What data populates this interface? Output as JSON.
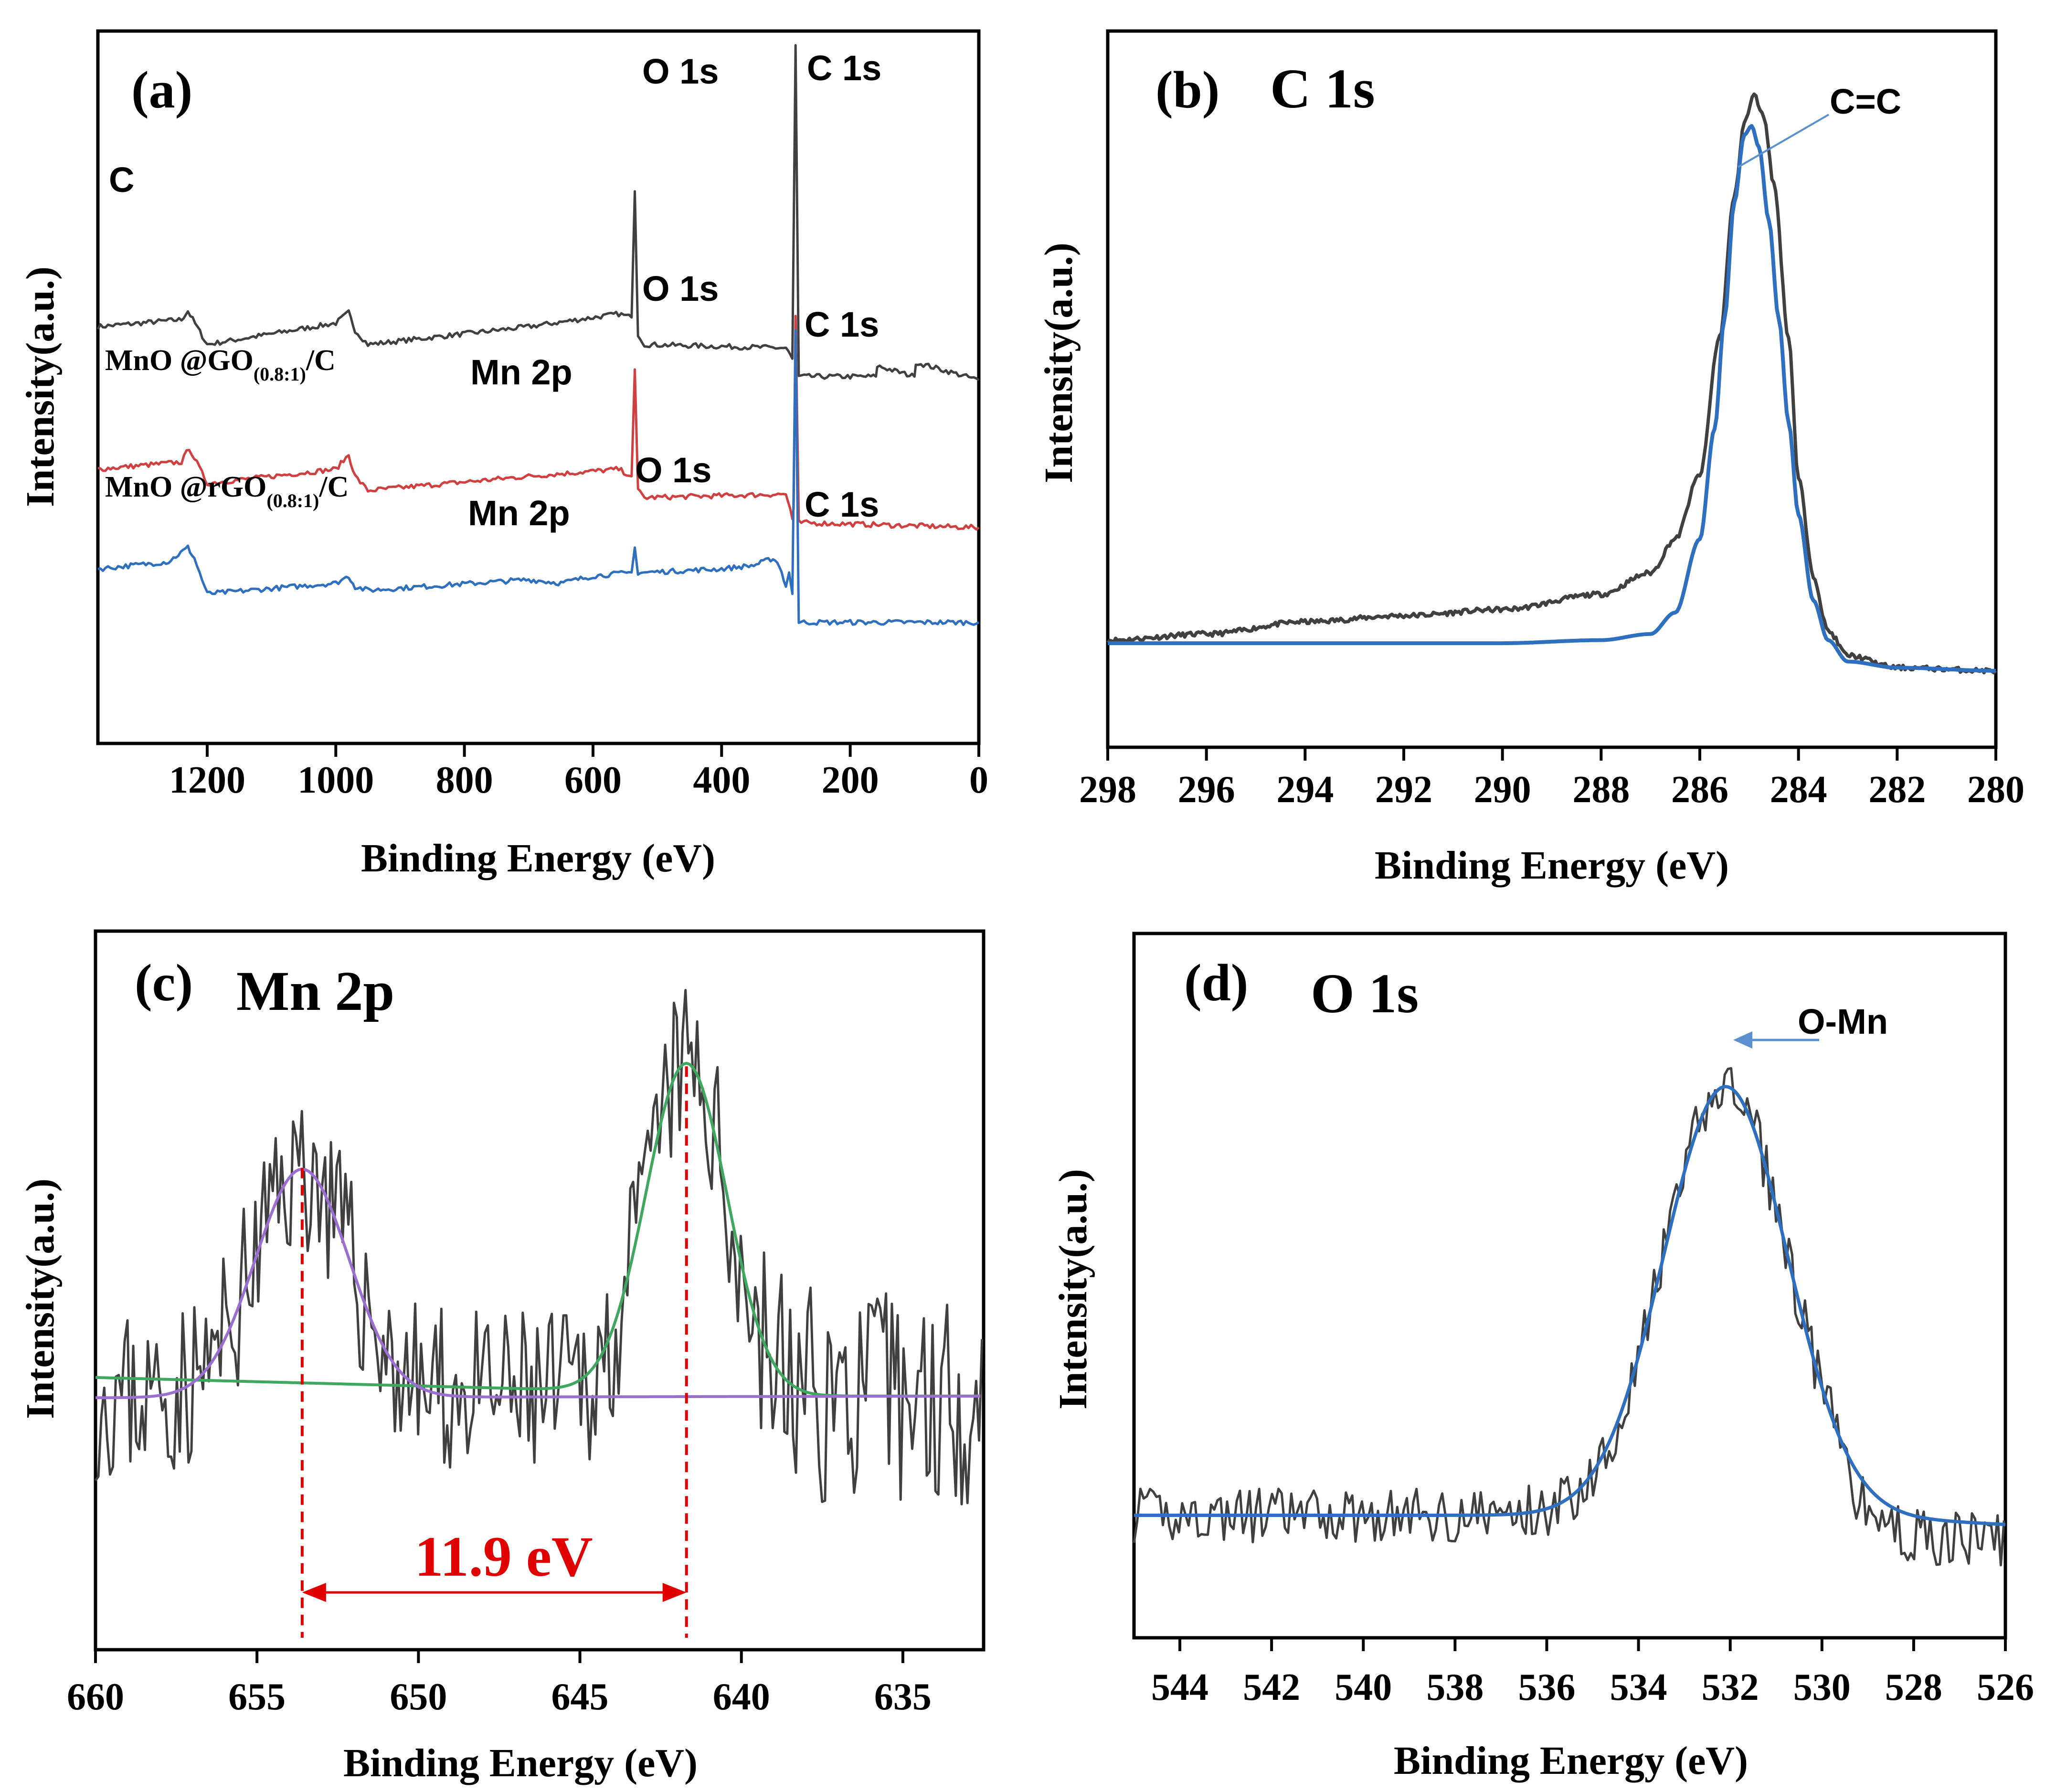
{
  "chart_data": [
    {
      "id": "a",
      "type": "line",
      "panel_label": "(a)",
      "xlabel": "Binding Energy (eV)",
      "ylabel": "Intensity(a.u.)",
      "xlim": [
        1370,
        0
      ],
      "xticks": [
        1200,
        1000,
        800,
        600,
        400,
        200,
        0
      ],
      "series": [
        {
          "name": "C",
          "color": "#404040",
          "x": [
            1370,
            1240,
            1230,
            1200,
            1000,
            980,
            970,
            950,
            700,
            560,
            540,
            535,
            530,
            520,
            300,
            290,
            285,
            280,
            160,
            158,
            100,
            98,
            0
          ],
          "y": [
            58.5,
            59.5,
            60.7,
            56.0,
            59.0,
            60.5,
            58.0,
            56.0,
            58.5,
            60.3,
            59.8,
            77.5,
            57.5,
            56.0,
            55.5,
            54.0,
            98.0,
            51.5,
            51.5,
            53.0,
            51.5,
            53.5,
            51.0
          ]
        },
        {
          "name": "MnO @GO(0.8:1)/C",
          "name_main": "MnO @GO",
          "name_sub": "(0.8:1)",
          "name_tail": "/C",
          "color": "#d04040",
          "x": [
            1370,
            1240,
            1228,
            1200,
            1000,
            980,
            970,
            950,
            700,
            560,
            540,
            535,
            530,
            520,
            300,
            290,
            288,
            285,
            280,
            0
          ],
          "y": [
            38.5,
            39.5,
            41.5,
            36.5,
            38.5,
            40.5,
            37.5,
            35.5,
            37.5,
            38.5,
            37.5,
            52.5,
            35.5,
            34.5,
            35.0,
            31.5,
            33.0,
            60.0,
            31.0,
            30.3
          ]
        },
        {
          "name": "MnO @rGO(0.8:1)/C",
          "name_main": "MnO @rGO",
          "name_sub": "(0.8:1)",
          "name_tail": "/C",
          "color": "#2e6fc0",
          "x": [
            1370,
            1260,
            1230,
            1220,
            1200,
            1000,
            980,
            970,
            950,
            700,
            650,
            600,
            540,
            535,
            530,
            520,
            400,
            350,
            320,
            310,
            300,
            295,
            290,
            285,
            280,
            0
          ],
          "y": [
            24.5,
            25.5,
            27.5,
            26.0,
            21.0,
            22.5,
            23.5,
            22.0,
            21.5,
            23.0,
            22.5,
            23.5,
            24.0,
            27.5,
            24.0,
            24.0,
            24.5,
            25.0,
            26.0,
            25.0,
            22.0,
            24.0,
            21.0,
            58.0,
            17.0,
            17.0
          ]
        }
      ],
      "annotations": [
        {
          "text": "O 1s",
          "series": "C"
        },
        {
          "text": "C 1s",
          "series": "C"
        },
        {
          "text": "O 1s",
          "series": "MnO @GO(0.8:1)/C"
        },
        {
          "text": "C 1s",
          "series": "MnO @GO(0.8:1)/C"
        },
        {
          "text": "Mn 2p",
          "series": "MnO @GO(0.8:1)/C"
        },
        {
          "text": "O 1s",
          "series": "MnO @rGO(0.8:1)/C"
        },
        {
          "text": "C 1s",
          "series": "MnO @rGO(0.8:1)/C"
        },
        {
          "text": "Mn 2p",
          "series": "MnO @rGO(0.8:1)/C"
        }
      ]
    },
    {
      "id": "b",
      "type": "line",
      "panel_label": "(b)",
      "title": "C 1s",
      "xlabel": "Binding Energy (eV)",
      "ylabel": "Intensity(a.u.)",
      "xlim": [
        298,
        280
      ],
      "xticks": [
        298,
        296,
        294,
        292,
        290,
        288,
        286,
        284,
        282,
        280
      ],
      "series": [
        {
          "name": "raw",
          "color": "#404040",
          "x": [
            298,
            296,
            294,
            292,
            290,
            288,
            287,
            286.5,
            286,
            285.6,
            285.3,
            285.1,
            284.9,
            284.7,
            284.5,
            284.2,
            284,
            283.7,
            283.4,
            283,
            282,
            280
          ],
          "y": [
            5.5,
            6.5,
            8.5,
            9.5,
            10.5,
            13.0,
            16.5,
            22.0,
            32.5,
            55.0,
            78.0,
            90.0,
            94.5,
            91.0,
            80.0,
            55.0,
            32.0,
            16.0,
            7.0,
            3.0,
            1.0,
            0.5
          ]
        },
        {
          "name": "fit C=C",
          "color": "#2e6fc0",
          "x": [
            298,
            290,
            288,
            287,
            286.5,
            286,
            285.7,
            285.5,
            285.3,
            285.1,
            284.95,
            284.8,
            284.6,
            284.4,
            284.2,
            284,
            283.7,
            283.4,
            283,
            282,
            280
          ],
          "y": [
            5.0,
            5.0,
            5.5,
            6.5,
            10.0,
            22.0,
            40.0,
            58.0,
            77.0,
            88.0,
            89.5,
            86.0,
            74.0,
            58.0,
            41.0,
            26.0,
            12.0,
            5.5,
            2.0,
            1.0,
            0.5
          ]
        }
      ],
      "annotations": [
        {
          "text": "C=C"
        }
      ]
    },
    {
      "id": "c",
      "type": "line",
      "panel_label": "(c)",
      "title": "Mn 2p",
      "xlabel": "Binding Energy (eV)",
      "ylabel": "Intensity(a.u.)",
      "xlim": [
        660,
        632.5
      ],
      "xticks": [
        660,
        655,
        650,
        645,
        640,
        635
      ],
      "series": [
        {
          "name": "raw",
          "color": "#404040",
          "noise": true
        },
        {
          "name": "fit 2p1/2",
          "color": "#9b6fd0",
          "center": 653.6,
          "sigma": 1.45,
          "height": 27
        },
        {
          "name": "fit 2p3/2",
          "color": "#3fa760",
          "center": 641.7,
          "sigma": 1.25,
          "height": 39
        }
      ],
      "peak_positions": [
        653.6,
        641.7
      ],
      "separation_label": "11.9 eV"
    },
    {
      "id": "d",
      "type": "line",
      "panel_label": "(d)",
      "title": "O 1s",
      "xlabel": "Binding Energy (eV)",
      "ylabel": "Intensity(a.u.)",
      "xlim": [
        545,
        526
      ],
      "xticks": [
        544,
        542,
        540,
        538,
        536,
        534,
        532,
        530,
        528,
        526
      ],
      "series": [
        {
          "name": "raw",
          "color": "#404040",
          "noise": true
        },
        {
          "name": "fit O-Mn",
          "color": "#2e6fc0",
          "center": 532.1,
          "sigma": 1.35,
          "height": 70
        }
      ],
      "annotations": [
        {
          "text": "O-Mn"
        }
      ]
    }
  ]
}
